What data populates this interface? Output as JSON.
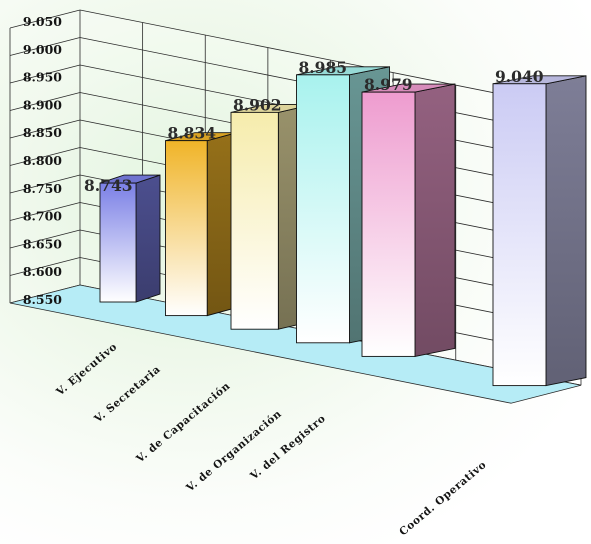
{
  "chart_data": {
    "type": "bar",
    "categories": [
      "V. Ejecutivo",
      "V. Secretaria",
      "V. de Capacitación",
      "V. de Organización",
      "V. del Registro",
      "",
      "Coord. Operativo"
    ],
    "values": [
      8.743,
      8.834,
      8.902,
      8.985,
      8.979,
      null,
      9.04
    ],
    "value_labels": [
      "8.743",
      "8.834",
      "8.902",
      "8.985",
      "8.979",
      "",
      "9.040"
    ],
    "y_tick_labels": [
      "9.050",
      "9.000",
      "8.950",
      "8.900",
      "8.850",
      "8.800",
      "8.750",
      "8.700",
      "8.650",
      "8.600",
      "8.550"
    ],
    "ylim": [
      8.55,
      9.05
    ],
    "grid": true,
    "legend": "none",
    "three_d": true,
    "colors": [
      "#7b80e6",
      "#f0b428",
      "#f6ecac",
      "#a8f2ee",
      "#ee9ccf",
      "#00000000",
      "#cbcbf4"
    ]
  }
}
